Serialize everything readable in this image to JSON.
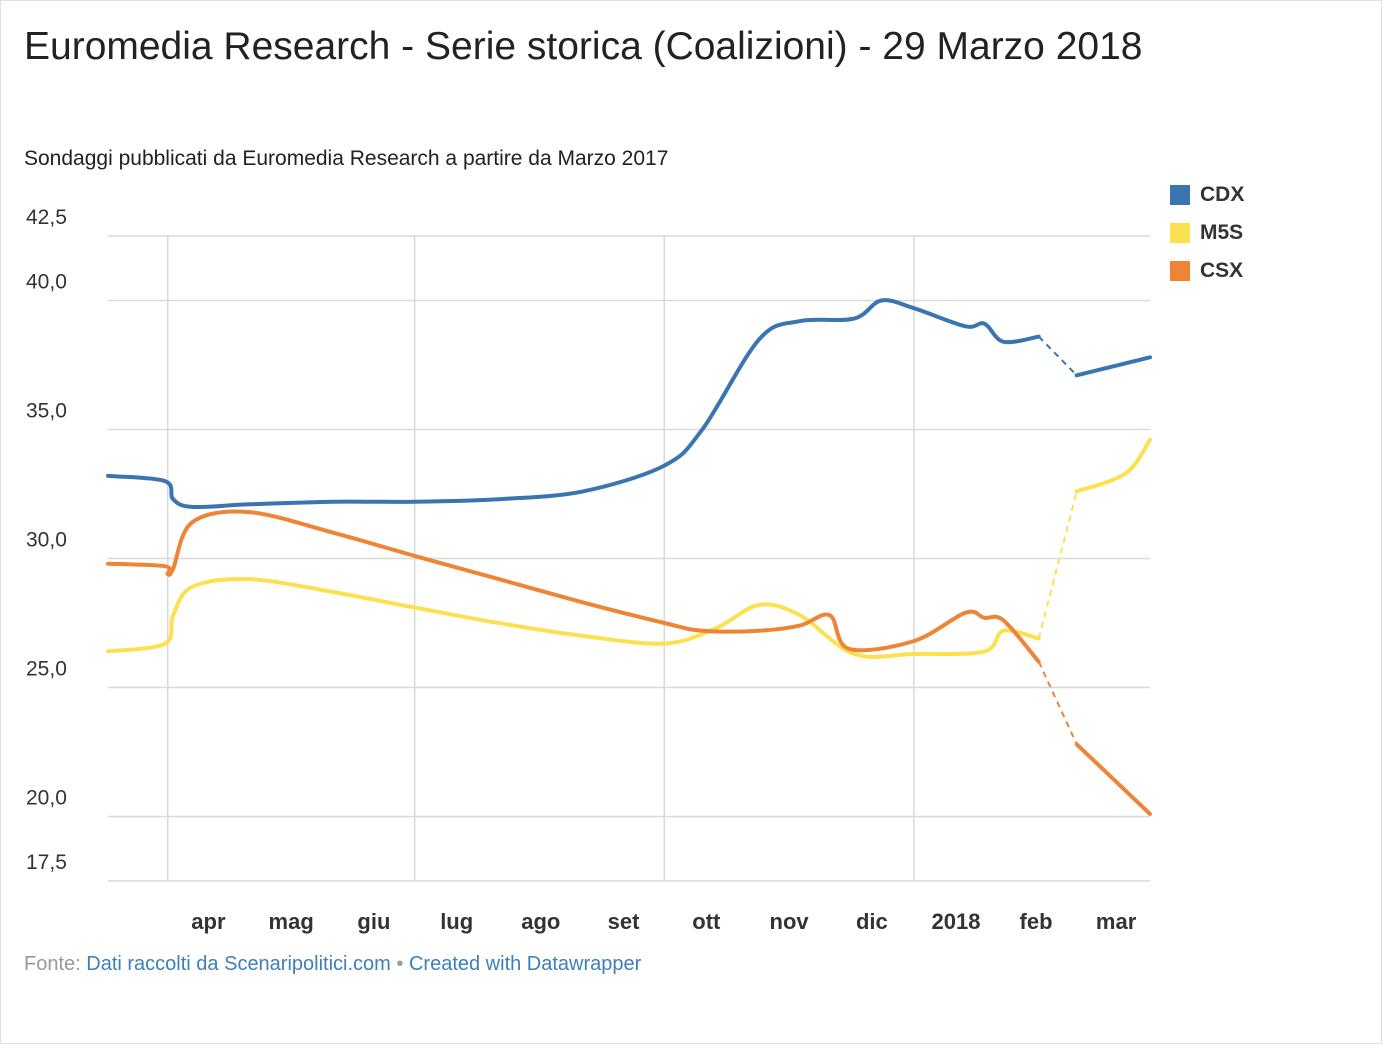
{
  "title": "Euromedia Research - Serie storica (Coalizioni) - 29 Marzo 2018",
  "subtitle": "Sondaggi pubblicati da Euromedia Research a partire da Marzo 2017",
  "footer": {
    "source_label": "Fonte:",
    "source_link": "Dati raccolti da Scenaripolitici.com",
    "separator": "•",
    "credit_link": "Created with Datawrapper"
  },
  "chart_data": {
    "type": "line",
    "title": "Euromedia Research - Serie storica (Coalizioni) - 29 Marzo 2018",
    "subtitle": "Sondaggi pubblicati da Euromedia Research a partire da Marzo 2017",
    "xlabel": "",
    "ylabel": "",
    "ylim": [
      17.5,
      42.5
    ],
    "yticks": [
      "42,5",
      "40,0",
      "35,0",
      "30,0",
      "25,0",
      "20,0",
      "17,5"
    ],
    "xlim": [
      "2017-03-10",
      "2018-03-29"
    ],
    "xticks": [
      {
        "date": "2017-04-01",
        "label": "apr"
      },
      {
        "date": "2017-05-01",
        "label": "mag"
      },
      {
        "date": "2017-06-01",
        "label": "giu"
      },
      {
        "date": "2017-07-01",
        "label": "lug"
      },
      {
        "date": "2017-08-01",
        "label": "ago"
      },
      {
        "date": "2017-09-01",
        "label": "set"
      },
      {
        "date": "2017-10-01",
        "label": "ott"
      },
      {
        "date": "2017-11-01",
        "label": "nov"
      },
      {
        "date": "2017-12-01",
        "label": "dic"
      },
      {
        "date": "2018-01-01",
        "label": "2018"
      },
      {
        "date": "2018-02-01",
        "label": "feb"
      },
      {
        "date": "2018-03-01",
        "label": "mar"
      }
    ],
    "grid": true,
    "legend_position": "top-right",
    "gap_start": "2018-02-16",
    "gap_end": "2018-03-02",
    "series": [
      {
        "name": "CDX",
        "color": "#3a75b0",
        "x": [
          "2017-03-10",
          "2017-03-31",
          "2017-04-03",
          "2017-04-10",
          "2017-05-01",
          "2017-06-01",
          "2017-07-01",
          "2017-08-01",
          "2017-09-01",
          "2017-10-01",
          "2017-10-15",
          "2017-11-05",
          "2017-11-20",
          "2017-12-10",
          "2017-12-20",
          "2018-01-01",
          "2018-01-20",
          "2018-01-27",
          "2018-02-03",
          "2018-02-16",
          "2018-03-02",
          "2018-03-29"
        ],
        "values": [
          33.2,
          33.0,
          32.3,
          32.0,
          32.1,
          32.2,
          32.2,
          32.3,
          32.6,
          33.6,
          35.0,
          38.5,
          39.2,
          39.3,
          40.0,
          39.7,
          39.0,
          39.1,
          38.4,
          38.6,
          37.1,
          37.8
        ]
      },
      {
        "name": "M5S",
        "color": "#fbe14f",
        "x": [
          "2017-03-10",
          "2017-03-31",
          "2017-04-03",
          "2017-04-10",
          "2017-05-01",
          "2017-06-01",
          "2017-07-01",
          "2017-08-01",
          "2017-09-01",
          "2017-10-01",
          "2017-10-20",
          "2017-11-05",
          "2017-11-20",
          "2017-12-10",
          "2018-01-01",
          "2018-01-27",
          "2018-02-03",
          "2018-02-16",
          "2018-03-02",
          "2018-03-20",
          "2018-03-29"
        ],
        "values": [
          26.4,
          26.7,
          27.8,
          28.9,
          29.2,
          28.7,
          28.1,
          27.5,
          27.0,
          26.7,
          27.3,
          28.2,
          27.8,
          26.3,
          26.3,
          26.4,
          27.2,
          26.9,
          32.6,
          33.3,
          34.6
        ]
      },
      {
        "name": "CSX",
        "color": "#ee8436",
        "x": [
          "2017-03-10",
          "2017-03-31",
          "2017-04-01",
          "2017-04-03",
          "2017-04-10",
          "2017-05-01",
          "2017-06-01",
          "2017-07-01",
          "2017-08-01",
          "2017-09-01",
          "2017-10-01",
          "2017-10-15",
          "2017-11-05",
          "2017-11-20",
          "2017-12-01",
          "2017-12-08",
          "2018-01-01",
          "2018-01-20",
          "2018-01-27",
          "2018-02-03",
          "2018-02-16",
          "2018-03-02",
          "2018-03-29"
        ],
        "values": [
          29.8,
          29.7,
          29.4,
          29.6,
          31.4,
          31.8,
          31.0,
          30.1,
          29.2,
          28.3,
          27.5,
          27.2,
          27.2,
          27.4,
          27.8,
          26.5,
          26.8,
          27.9,
          27.7,
          27.6,
          26.0,
          22.8,
          20.1
        ]
      }
    ]
  }
}
